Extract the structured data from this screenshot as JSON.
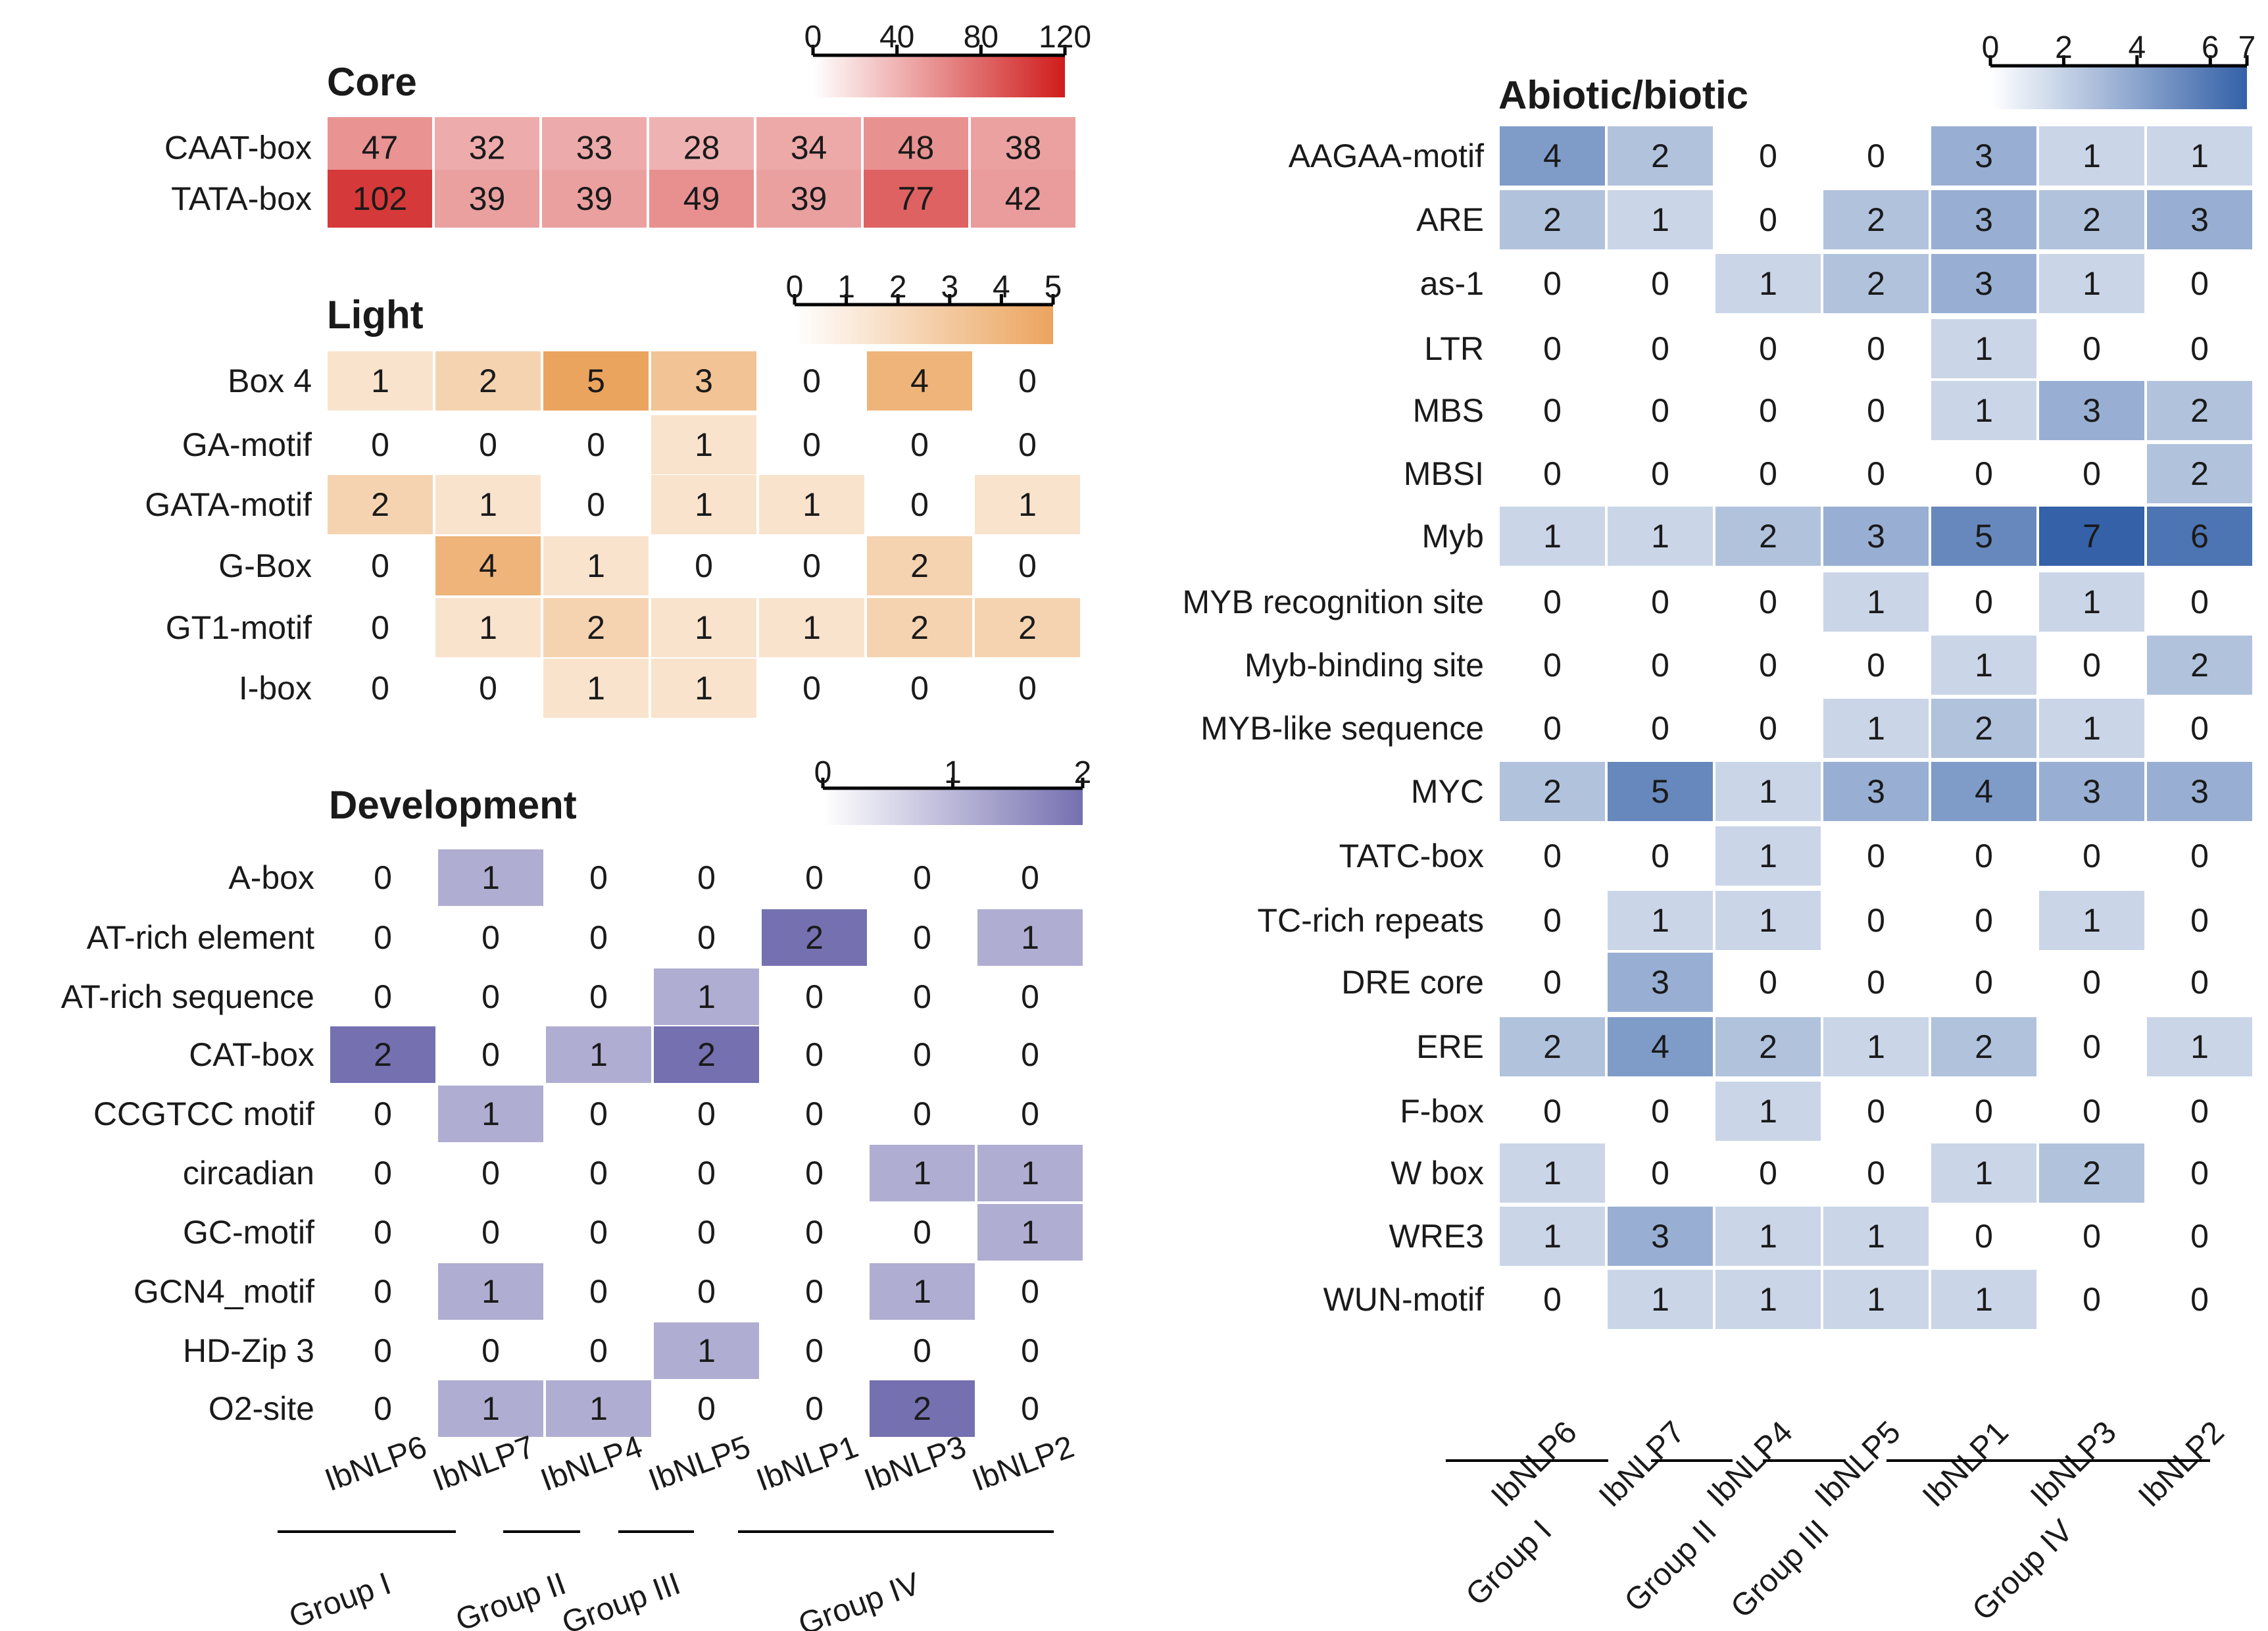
{
  "chart_data": [
    {
      "type": "heatmap",
      "title": "Core",
      "colormap": {
        "low": "#ffffff",
        "high": "#d01c1c"
      },
      "color_range": [
        0,
        120
      ],
      "colorbar_ticks": [
        "0",
        "40",
        "80",
        "120"
      ],
      "colorbar_tick_values": [
        0,
        40,
        80,
        120
      ],
      "columns": [
        "IbNLP6",
        "IbNLP7",
        "IbNLP4",
        "IbNLP5",
        "IbNLP1",
        "IbNLP3",
        "IbNLP2"
      ],
      "rows": [
        "CAAT-box",
        "TATA-box"
      ],
      "values": [
        [
          47,
          32,
          33,
          28,
          34,
          48,
          38
        ],
        [
          102,
          39,
          39,
          49,
          39,
          77,
          42
        ]
      ],
      "show_zero_cells": true
    },
    {
      "type": "heatmap",
      "title": "Light",
      "colormap": {
        "low": "#ffffff",
        "high": "#eba45e"
      },
      "color_range": [
        0,
        5
      ],
      "colorbar_ticks": [
        "0",
        "1",
        "2",
        "3",
        "4",
        "5"
      ],
      "colorbar_tick_values": [
        0,
        1,
        2,
        3,
        4,
        5
      ],
      "columns": [
        "IbNLP6",
        "IbNLP7",
        "IbNLP4",
        "IbNLP5",
        "IbNLP1",
        "IbNLP3",
        "IbNLP2"
      ],
      "rows": [
        "Box 4",
        "GA-motif",
        "GATA-motif",
        "G-Box",
        "GT1-motif",
        "I-box"
      ],
      "values": [
        [
          1,
          2,
          5,
          3,
          0,
          4,
          0
        ],
        [
          0,
          0,
          0,
          1,
          0,
          0,
          0
        ],
        [
          2,
          1,
          0,
          1,
          1,
          0,
          1
        ],
        [
          0,
          4,
          1,
          0,
          0,
          2,
          0
        ],
        [
          0,
          1,
          2,
          1,
          1,
          2,
          2
        ],
        [
          0,
          0,
          1,
          1,
          0,
          0,
          0
        ]
      ],
      "show_zero_cells": false
    },
    {
      "type": "heatmap",
      "title": "Development",
      "colormap": {
        "low": "#ffffff",
        "high": "#7570b0"
      },
      "color_range": [
        0,
        2
      ],
      "colorbar_ticks": [
        "0",
        "1",
        "2"
      ],
      "colorbar_tick_values": [
        0,
        1,
        2
      ],
      "columns": [
        "IbNLP6",
        "IbNLP7",
        "IbNLP4",
        "IbNLP5",
        "IbNLP1",
        "IbNLP3",
        "IbNLP2"
      ],
      "rows": [
        "A-box",
        "AT-rich element",
        "AT-rich sequence",
        "CAT-box",
        "CCGTCC motif",
        "circadian",
        "GC-motif",
        "GCN4_motif",
        "HD-Zip 3",
        "O2-site"
      ],
      "values": [
        [
          0,
          1,
          0,
          0,
          0,
          0,
          0
        ],
        [
          0,
          0,
          0,
          0,
          2,
          0,
          1
        ],
        [
          0,
          0,
          0,
          1,
          0,
          0,
          0
        ],
        [
          2,
          0,
          1,
          2,
          0,
          0,
          0
        ],
        [
          0,
          1,
          0,
          0,
          0,
          0,
          0
        ],
        [
          0,
          0,
          0,
          0,
          0,
          1,
          1
        ],
        [
          0,
          0,
          0,
          0,
          0,
          0,
          1
        ],
        [
          0,
          1,
          0,
          0,
          0,
          1,
          0
        ],
        [
          0,
          0,
          0,
          1,
          0,
          0,
          0
        ],
        [
          0,
          1,
          1,
          0,
          0,
          2,
          0
        ]
      ],
      "show_zero_cells": false,
      "column_groups": [
        {
          "name": "Group I",
          "columns": [
            "IbNLP6",
            "IbNLP7"
          ]
        },
        {
          "name": "Group II",
          "columns": [
            "IbNLP4"
          ]
        },
        {
          "name": "Group III",
          "columns": [
            "IbNLP5"
          ]
        },
        {
          "name": "Group IV",
          "columns": [
            "IbNLP1",
            "IbNLP3",
            "IbNLP2"
          ]
        }
      ]
    },
    {
      "type": "heatmap",
      "title": "Abiotic/biotic",
      "colormap": {
        "low": "#ffffff",
        "high": "#3461a8"
      },
      "color_range": [
        0,
        7
      ],
      "colorbar_ticks": [
        "0",
        "2",
        "4",
        "6",
        "7"
      ],
      "colorbar_tick_values": [
        0,
        2,
        4,
        6,
        7
      ],
      "columns": [
        "IbNLP6",
        "IbNLP7",
        "IbNLP4",
        "IbNLP5",
        "IbNLP1",
        "IbNLP3",
        "IbNLP2"
      ],
      "rows": [
        "AAGAA-motif",
        "ARE",
        "as-1",
        "LTR",
        "MBS",
        "MBSI",
        "Myb",
        "MYB recognition site",
        "Myb-binding site",
        "MYB-like sequence",
        "MYC",
        "TATC-box",
        "TC-rich repeats",
        "DRE core",
        "ERE",
        "F-box",
        "W box",
        "WRE3",
        "WUN-motif"
      ],
      "values": [
        [
          4,
          2,
          0,
          0,
          3,
          1,
          1
        ],
        [
          2,
          1,
          0,
          2,
          3,
          2,
          3
        ],
        [
          0,
          0,
          1,
          2,
          3,
          1,
          0
        ],
        [
          0,
          0,
          0,
          0,
          1,
          0,
          0
        ],
        [
          0,
          0,
          0,
          0,
          1,
          3,
          2
        ],
        [
          0,
          0,
          0,
          0,
          0,
          0,
          2
        ],
        [
          1,
          1,
          2,
          3,
          5,
          7,
          6
        ],
        [
          0,
          0,
          0,
          1,
          0,
          1,
          0
        ],
        [
          0,
          0,
          0,
          0,
          1,
          0,
          2
        ],
        [
          0,
          0,
          0,
          1,
          2,
          1,
          0
        ],
        [
          2,
          5,
          1,
          3,
          4,
          3,
          3
        ],
        [
          0,
          0,
          1,
          0,
          0,
          0,
          0
        ],
        [
          0,
          1,
          1,
          0,
          0,
          1,
          0
        ],
        [
          0,
          3,
          0,
          0,
          0,
          0,
          0
        ],
        [
          2,
          4,
          2,
          1,
          2,
          0,
          1
        ],
        [
          0,
          0,
          1,
          0,
          0,
          0,
          0
        ],
        [
          1,
          0,
          0,
          0,
          1,
          2,
          0
        ],
        [
          1,
          3,
          1,
          1,
          0,
          0,
          0
        ],
        [
          0,
          1,
          1,
          1,
          1,
          0,
          0
        ]
      ],
      "show_zero_cells": false,
      "column_groups": [
        {
          "name": "Group I",
          "columns": [
            "IbNLP6",
            "IbNLP7"
          ]
        },
        {
          "name": "Group II",
          "columns": [
            "IbNLP4"
          ]
        },
        {
          "name": "Group III",
          "columns": [
            "IbNLP5"
          ]
        },
        {
          "name": "Group IV",
          "columns": [
            "IbNLP1",
            "IbNLP3",
            "IbNLP2"
          ]
        }
      ]
    }
  ]
}
